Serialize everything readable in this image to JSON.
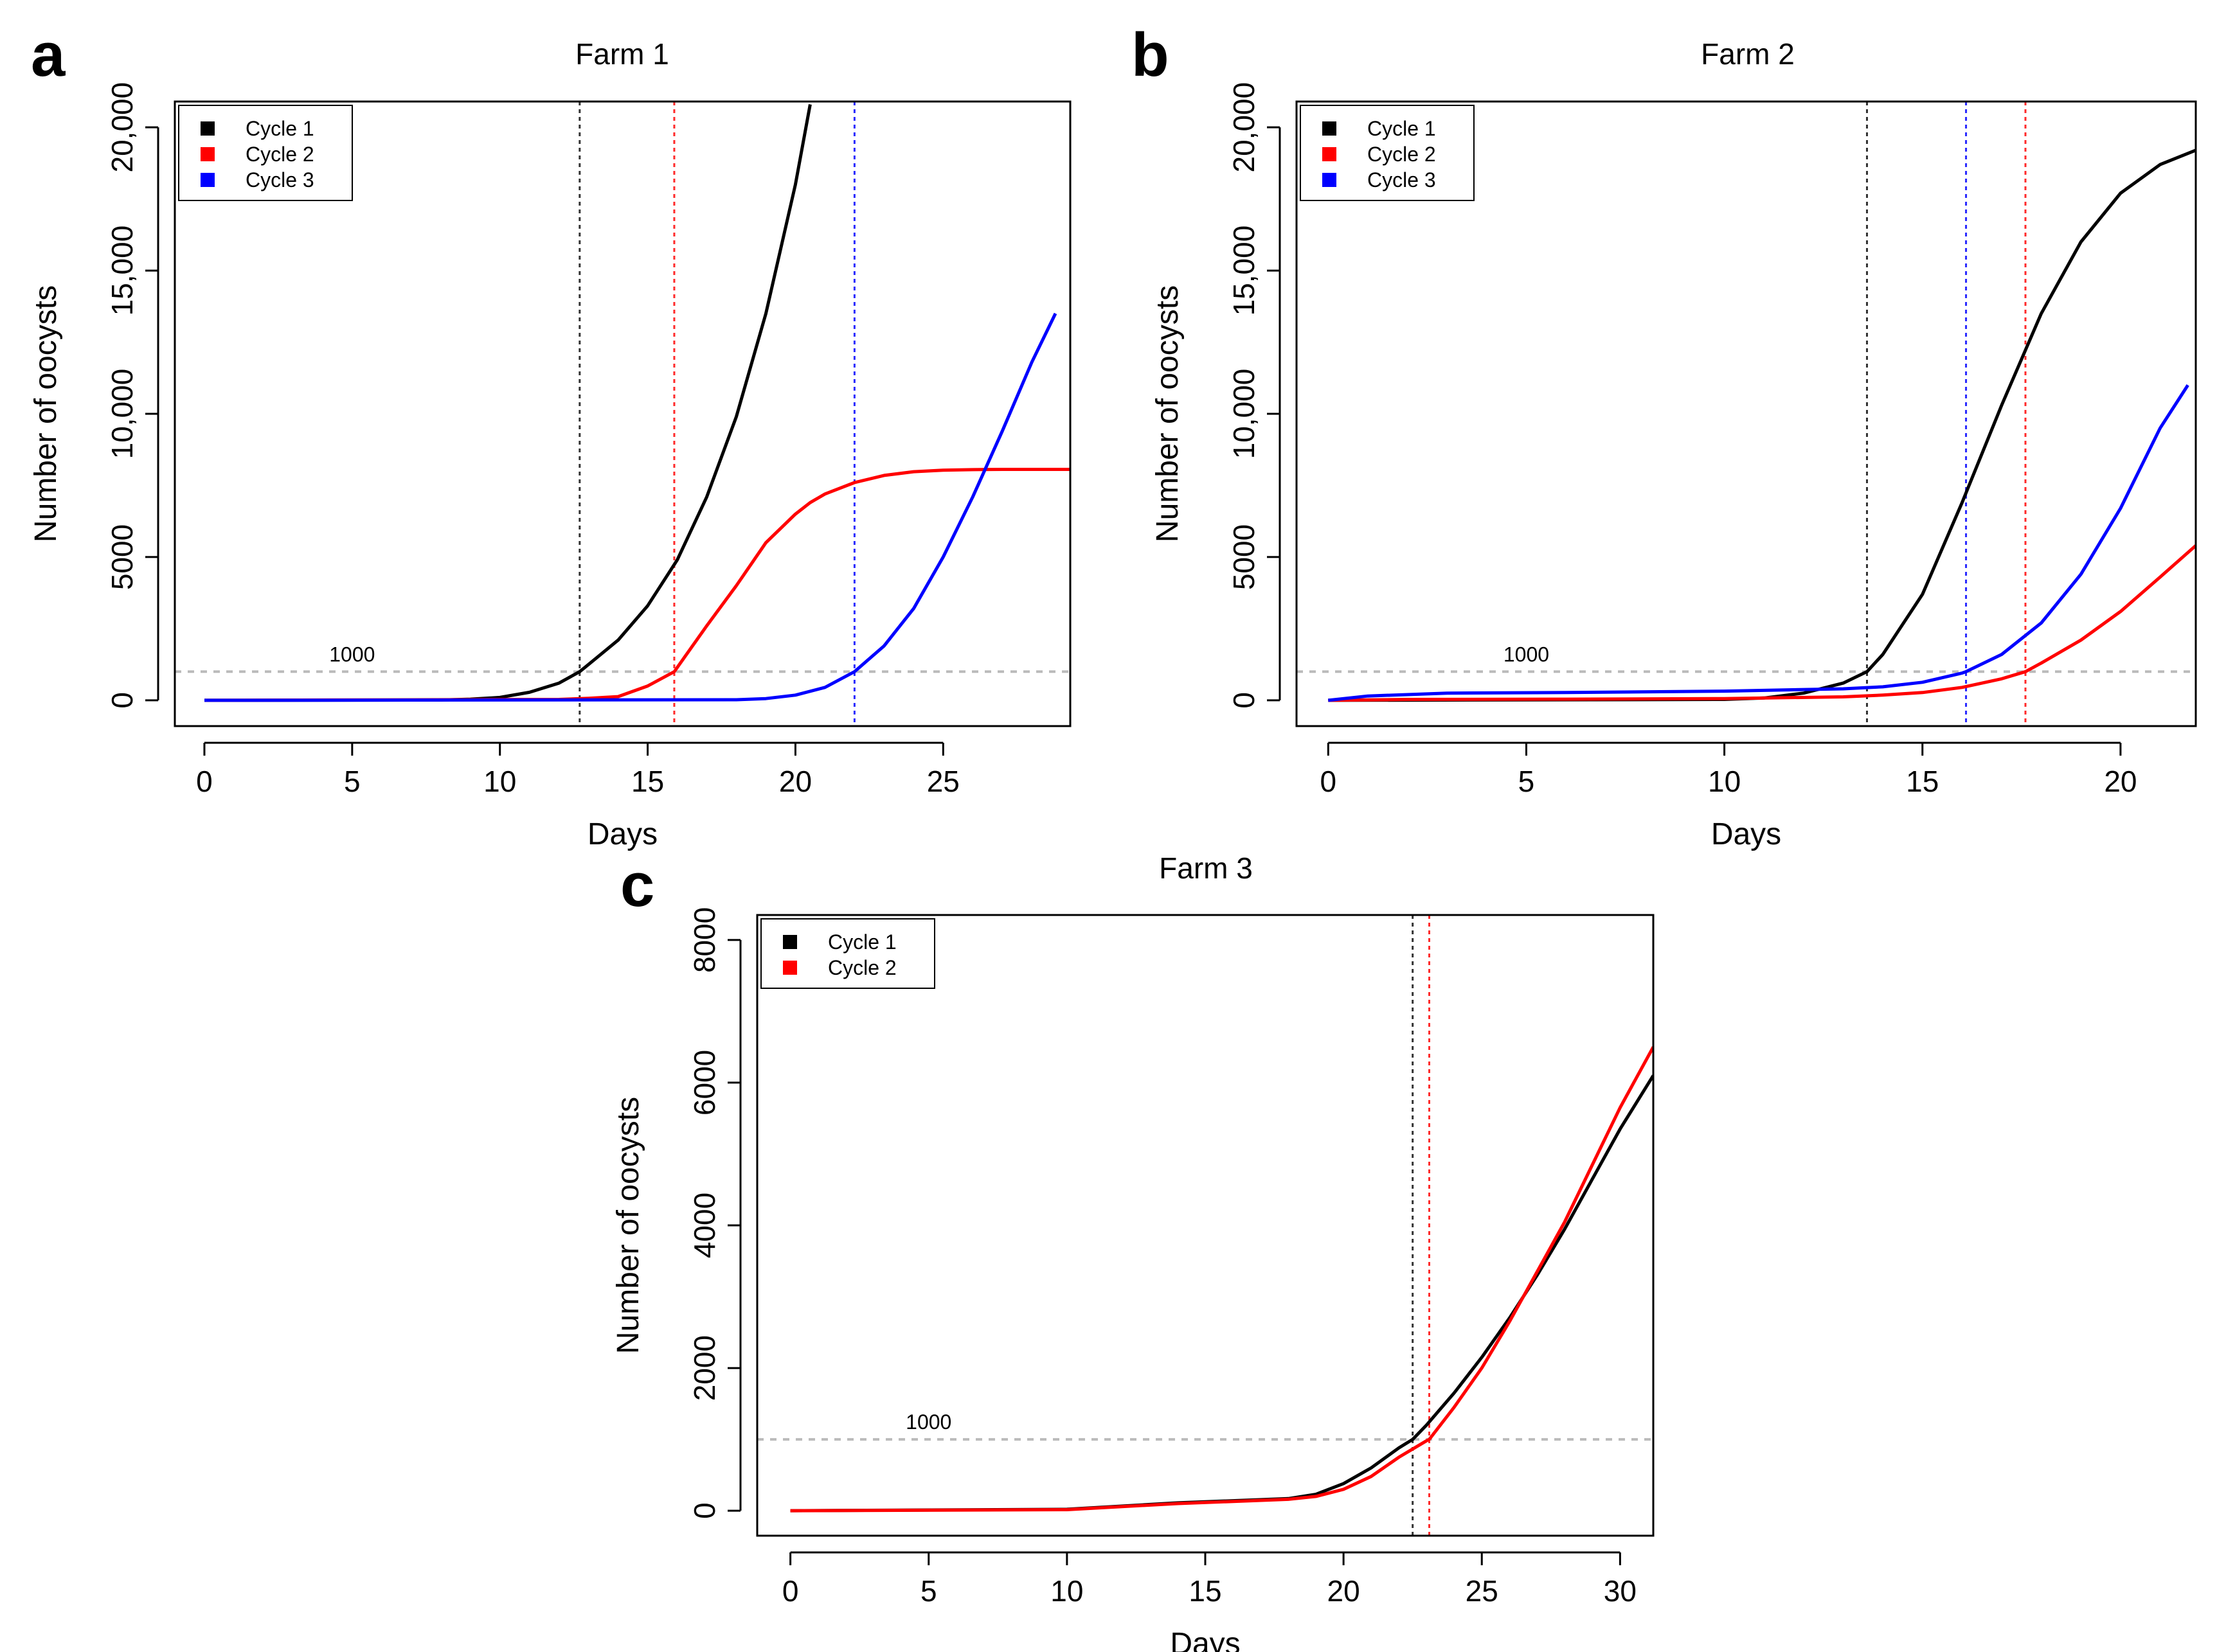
{
  "chart_data": [
    {
      "type": "line",
      "panel_letter": "a",
      "title": "Farm 1",
      "xlabel": "Days",
      "ylabel": "Number of oocysts",
      "xlim": [
        -1,
        29.3
      ],
      "ylim": [
        -900,
        20900
      ],
      "xticks": [
        0,
        5,
        10,
        15,
        20,
        25
      ],
      "xtick_labels": [
        "0",
        "5",
        "10",
        "15",
        "20",
        "25"
      ],
      "yticks": [
        0,
        5000,
        10000,
        15000,
        20000
      ],
      "ytick_labels": [
        "0",
        "5000",
        "10,000",
        "15,000",
        "20,000"
      ],
      "threshold": {
        "value": 1000,
        "label": "1000",
        "label_x": 5
      },
      "legend": {
        "position": "top-left",
        "entries": [
          "Cycle 1",
          "Cycle 2",
          "Cycle 3"
        ]
      },
      "vlines": [
        {
          "x": 12.7,
          "color": "#333333"
        },
        {
          "x": 15.9,
          "color": "#ff2a2a"
        },
        {
          "x": 22.0,
          "color": "#2a2aff"
        }
      ],
      "series": [
        {
          "name": "Cycle 1",
          "color": "#000000",
          "x": [
            0,
            8,
            9,
            10,
            11,
            12,
            12.7,
            13,
            14,
            15,
            16,
            17,
            18,
            19,
            20,
            20.5
          ],
          "y": [
            0,
            10,
            40,
            100,
            280,
            600,
            1000,
            1250,
            2100,
            3300,
            4900,
            7100,
            9900,
            13500,
            18000,
            20800
          ]
        },
        {
          "name": "Cycle 2",
          "color": "#ff0000",
          "x": [
            0,
            12,
            13,
            14,
            15,
            15.9,
            17,
            18,
            19,
            20,
            20.5,
            21,
            22,
            23,
            24,
            25,
            26,
            27,
            28,
            29.3
          ],
          "y": [
            0,
            30,
            70,
            130,
            500,
            1000,
            2600,
            4000,
            5500,
            6500,
            6900,
            7200,
            7600,
            7850,
            7980,
            8030,
            8050,
            8060,
            8060,
            8060
          ]
        },
        {
          "name": "Cycle 3",
          "color": "#0000ff",
          "x": [
            0,
            18,
            19,
            20,
            21,
            22,
            23,
            24,
            25,
            26,
            27,
            28,
            28.8
          ],
          "y": [
            0,
            20,
            60,
            180,
            450,
            1000,
            1900,
            3200,
            5000,
            7100,
            9400,
            11800,
            13500
          ]
        }
      ]
    },
    {
      "type": "line",
      "panel_letter": "b",
      "title": "Farm 2",
      "xlabel": "Days",
      "ylabel": "Number of oocysts",
      "xlim": [
        -0.8,
        21.9
      ],
      "ylim": [
        -900,
        20900
      ],
      "xticks": [
        0,
        5,
        10,
        15,
        20
      ],
      "xtick_labels": [
        "0",
        "5",
        "10",
        "15",
        "20"
      ],
      "yticks": [
        0,
        5000,
        10000,
        15000,
        20000
      ],
      "ytick_labels": [
        "0",
        "5000",
        "10,000",
        "15,000",
        "20,000"
      ],
      "threshold": {
        "value": 1000,
        "label": "1000",
        "label_x": 5
      },
      "legend": {
        "position": "top-left",
        "entries": [
          "Cycle 1",
          "Cycle 2",
          "Cycle 3"
        ]
      },
      "vlines": [
        {
          "x": 13.6,
          "color": "#333333"
        },
        {
          "x": 16.1,
          "color": "#2a2aff"
        },
        {
          "x": 17.6,
          "color": "#ff2a2a"
        }
      ],
      "series": [
        {
          "name": "Cycle 1",
          "color": "#000000",
          "x": [
            0,
            10,
            11,
            12,
            13,
            13.6,
            14,
            15,
            16,
            17,
            18,
            19,
            20,
            21,
            21.9
          ],
          "y": [
            0,
            30,
            80,
            250,
            600,
            1000,
            1600,
            3700,
            6900,
            10300,
            13500,
            16000,
            17700,
            18700,
            19200
          ]
        },
        {
          "name": "Cycle 2",
          "color": "#ff0000",
          "x": [
            0,
            2,
            6,
            10,
            13,
            14,
            15,
            16,
            17,
            17.6,
            18,
            19,
            20,
            21,
            21.9
          ],
          "y": [
            0,
            30,
            40,
            60,
            120,
            180,
            270,
            450,
            750,
            1000,
            1300,
            2100,
            3100,
            4300,
            5400
          ]
        },
        {
          "name": "Cycle 3",
          "color": "#0000ff",
          "x": [
            0,
            1,
            3,
            6,
            10,
            13,
            14,
            15,
            16,
            16.1,
            17,
            18,
            19,
            20,
            21,
            21.7
          ],
          "y": [
            0,
            150,
            250,
            270,
            320,
            400,
            470,
            630,
            950,
            1000,
            1600,
            2700,
            4400,
            6700,
            9500,
            11000
          ]
        }
      ]
    },
    {
      "type": "line",
      "panel_letter": "c",
      "title": "Farm 3",
      "xlabel": "Days",
      "ylabel": "Number of oocysts",
      "xlim": [
        -1.2,
        31.2
      ],
      "ylim": [
        -350,
        8350
      ],
      "xticks": [
        0,
        5,
        10,
        15,
        20,
        25,
        30
      ],
      "xtick_labels": [
        "0",
        "5",
        "10",
        "15",
        "20",
        "25",
        "30"
      ],
      "yticks": [
        0,
        2000,
        4000,
        6000,
        8000
      ],
      "ytick_labels": [
        "0",
        "2000",
        "4000",
        "6000",
        "8000"
      ],
      "threshold": {
        "value": 1000,
        "label": "1000",
        "label_x": 5
      },
      "legend": {
        "position": "top-left",
        "entries": [
          "Cycle 1",
          "Cycle 2"
        ]
      },
      "vlines": [
        {
          "x": 22.5,
          "color": "#333333"
        },
        {
          "x": 23.1,
          "color": "#ff2a2a"
        }
      ],
      "series": [
        {
          "name": "Cycle 1",
          "color": "#000000",
          "x": [
            0,
            10,
            14,
            18,
            19,
            20,
            21,
            22,
            22.5,
            23,
            24,
            25,
            26,
            27,
            28,
            29,
            30,
            31.2
          ],
          "y": [
            0,
            20,
            110,
            170,
            230,
            380,
            600,
            880,
            1000,
            1200,
            1650,
            2150,
            2700,
            3300,
            3950,
            4650,
            5350,
            6100
          ]
        },
        {
          "name": "Cycle 2",
          "color": "#ff0000",
          "x": [
            0,
            10,
            14,
            18,
            19,
            20,
            21,
            22,
            23,
            23.1,
            24,
            25,
            26,
            27,
            28,
            29,
            30,
            31.2
          ],
          "y": [
            0,
            15,
            100,
            160,
            200,
            300,
            480,
            750,
            980,
            1000,
            1450,
            2000,
            2650,
            3350,
            4050,
            4850,
            5650,
            6500
          ]
        }
      ]
    }
  ]
}
